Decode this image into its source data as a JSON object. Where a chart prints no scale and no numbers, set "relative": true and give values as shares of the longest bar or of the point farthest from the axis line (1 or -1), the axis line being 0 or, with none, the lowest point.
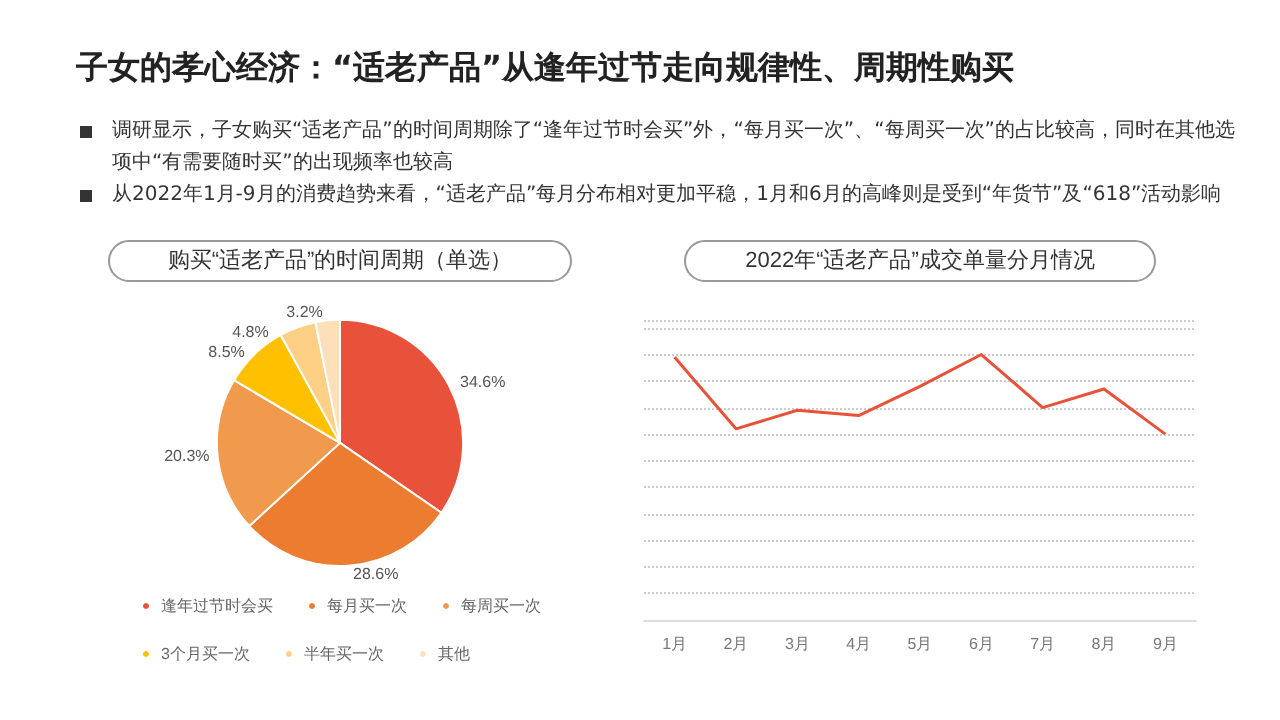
{
  "chart_data": [
    {
      "type": "pie",
      "subtitle": "子女的孝心经济：“适老产品”从逢年过节走向规律性、周期性购买",
      "annotations": [
        "调研显示，子女购买“适老产品”的时间周期除了“逢年过节时会买”外，“每月买一次”、“每周买一次”的占比较高，同时在其他选项中“有需要随时买”的出现频率也较高",
        "从2022年1月-9月的消费趋势来看，“适老产品”每月分布相对更加平稳，1月和6月的高峰则是受到“年货节”及“618”活动影响"
      ],
      "title": "购买“适老产品”的时间周期（单选）",
      "categories": [
        "逢年过节时会买",
        "每月买一次",
        "每周买一次",
        "3个月买一次",
        "半年买一次",
        "其他"
      ],
      "values": [
        34.6,
        28.6,
        20.3,
        8.5,
        4.8,
        3.2
      ],
      "colors": [
        "#e8523a",
        "#ec7c30",
        "#ef9a4c",
        "#ffc000",
        "#fdd085",
        "#fde0b9"
      ],
      "value_labels": [
        "34.6%",
        "28.6%",
        "20.3%",
        "8.5%",
        "4.8%",
        "3.2%"
      ],
      "legend": "bottom"
    },
    {
      "type": "line",
      "title": "2022年“适老产品”成交单量分月情况",
      "categories": [
        "1月",
        "2月",
        "3月",
        "4月",
        "5月",
        "6月",
        "7月",
        "8月",
        "9月"
      ],
      "relative": true,
      "grid": "y",
      "marker": "none",
      "series": [
        {
          "color": "#e8523a",
          "values": [
            0.99,
            0.72,
            0.79,
            0.77,
            0.88,
            1,
            0.8,
            0.87,
            0.7
          ]
        }
      ]
    }
  ]
}
